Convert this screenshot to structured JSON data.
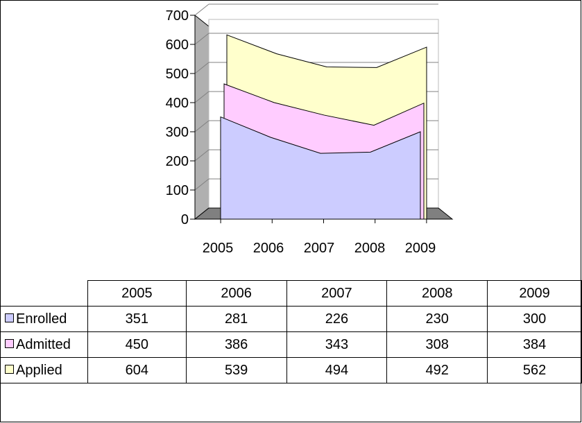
{
  "chart_data": {
    "type": "area",
    "categories": [
      "2005",
      "2006",
      "2007",
      "2008",
      "2009"
    ],
    "ylim": [
      0,
      700
    ],
    "yticks": [
      "0",
      "100",
      "200",
      "300",
      "400",
      "500",
      "600",
      "700"
    ],
    "gridlines": true,
    "legend": "table",
    "series": [
      {
        "name": "Enrolled",
        "values": [
          351,
          281,
          226,
          230,
          300
        ],
        "color": "#CCCCFF"
      },
      {
        "name": "Admitted",
        "values": [
          450,
          386,
          343,
          308,
          384
        ],
        "color": "#FFCCFF"
      },
      {
        "name": "Applied",
        "values": [
          604,
          539,
          494,
          492,
          562
        ],
        "color": "#FFFFCC"
      }
    ]
  },
  "colors": {
    "floor": "#808080",
    "wall": "#B0B0B0",
    "grid": "#808080"
  }
}
